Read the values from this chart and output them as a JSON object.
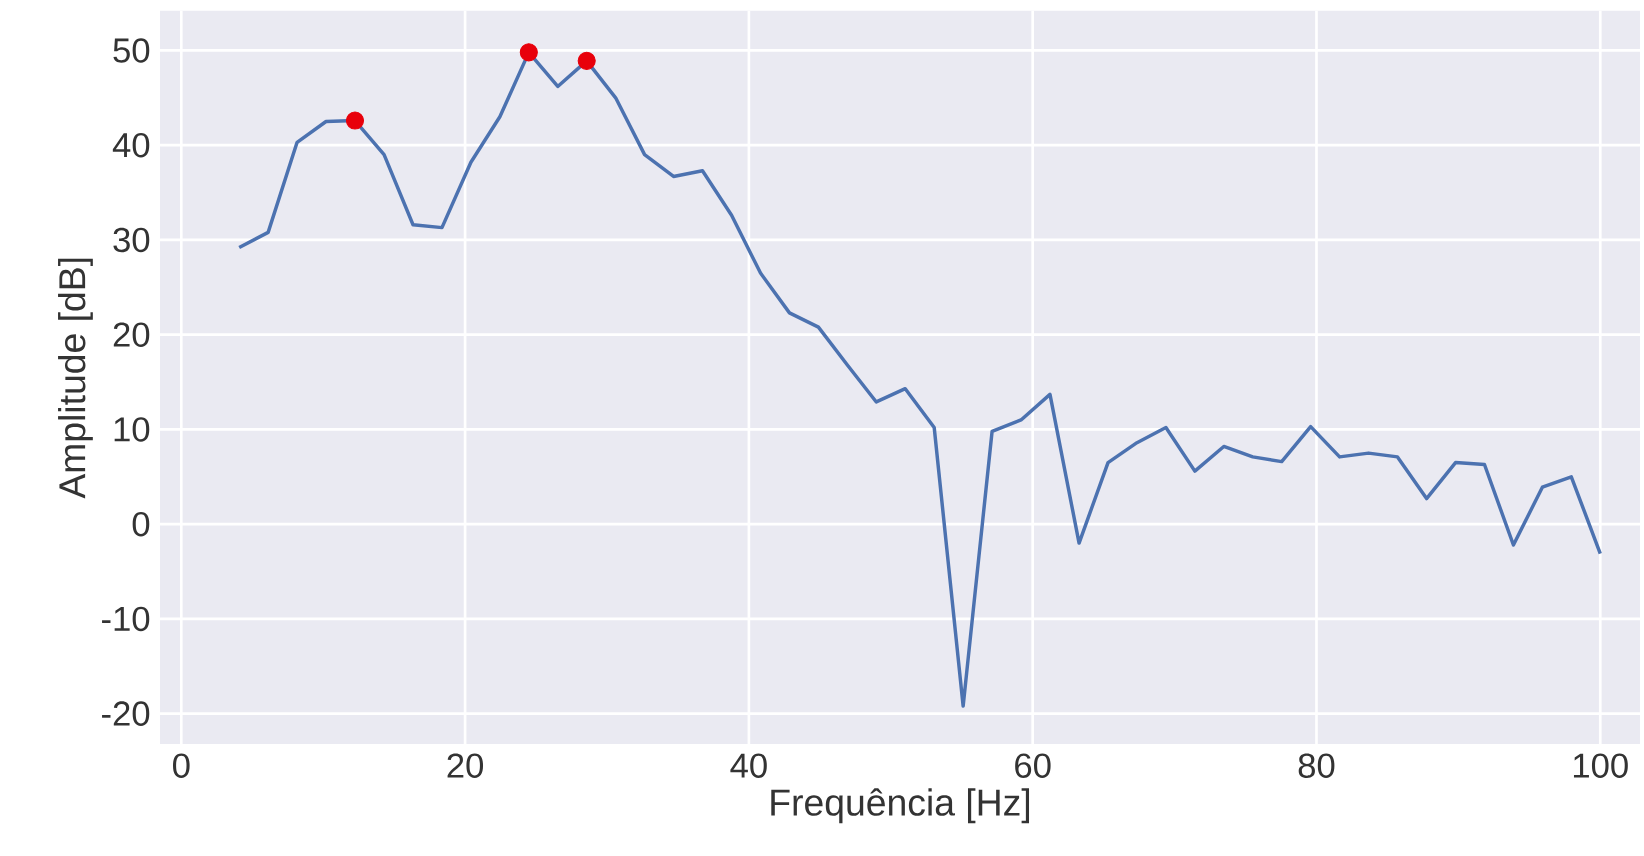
{
  "chart_data": {
    "type": "line",
    "xlabel": "Frequência [Hz]",
    "ylabel": "Amplitude [dB]",
    "xlim": [
      -1.5,
      102.8
    ],
    "ylim": [
      -23.2,
      54.2
    ],
    "xticks": [
      0,
      20,
      40,
      60,
      80,
      100
    ],
    "yticks": [
      -20,
      -10,
      0,
      10,
      20,
      30,
      40,
      50
    ],
    "grid": true,
    "series": [
      {
        "color": "#4c72b0",
        "line_style": "solid",
        "marker": "none",
        "x": [
          4.08,
          6.12,
          8.16,
          10.2,
          12.24,
          14.29,
          16.33,
          18.37,
          20.41,
          22.45,
          24.49,
          26.53,
          28.57,
          30.61,
          32.65,
          34.69,
          36.73,
          38.78,
          40.82,
          42.86,
          44.9,
          46.94,
          48.98,
          51.02,
          53.06,
          55.1,
          57.14,
          59.18,
          61.22,
          63.27,
          65.31,
          67.35,
          69.39,
          71.43,
          73.47,
          75.51,
          77.55,
          79.59,
          81.63,
          83.67,
          85.71,
          87.76,
          89.8,
          91.84,
          93.88,
          95.92,
          97.96,
          100
        ],
        "values": [
          29.2,
          30.8,
          40.3,
          42.5,
          42.6,
          39,
          31.6,
          31.3,
          38.2,
          43,
          49.8,
          46.2,
          48.9,
          45,
          39,
          36.7,
          37.3,
          32.6,
          26.5,
          22.3,
          20.8,
          16.8,
          12.9,
          14.3,
          10.2,
          -19.2,
          9.8,
          11,
          13.7,
          -2,
          6.5,
          8.6,
          10.2,
          5.6,
          8.2,
          7.1,
          6.6,
          10.3,
          7.1,
          7.5,
          7.1,
          2.7,
          6.5,
          6.3,
          -2.2,
          3.9,
          5,
          -3.1
        ]
      },
      {
        "type": "scatter",
        "color": "#e8000b",
        "marker": "circle",
        "x": [
          12.24,
          24.49,
          28.57
        ],
        "values": [
          42.6,
          49.8,
          48.9
        ]
      }
    ]
  }
}
